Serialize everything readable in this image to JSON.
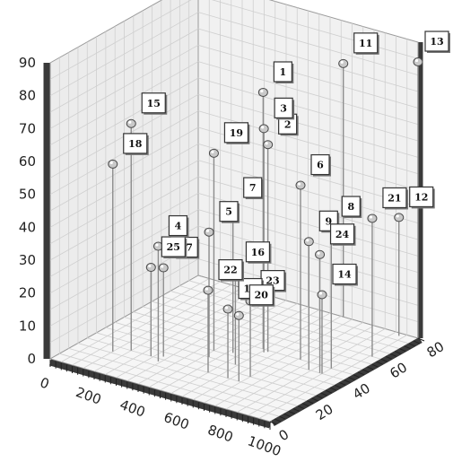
{
  "chart_data": {
    "type": "scatter",
    "title": "",
    "axes": {
      "x": {
        "min": 0,
        "max": 1000,
        "ticks": [
          "0",
          "200",
          "400",
          "600",
          "800",
          "1000"
        ]
      },
      "y": {
        "min": 0,
        "max": 80,
        "ticks": [
          "0",
          "20",
          "40",
          "60",
          "80"
        ]
      },
      "z": {
        "min": 0,
        "max": 90,
        "ticks": [
          "0",
          "10",
          "20",
          "30",
          "40",
          "50",
          "60",
          "70",
          "80",
          "90"
        ]
      }
    },
    "grid": true,
    "points": [
      {
        "label": "1",
        "x": 590,
        "y": 45,
        "z": 78
      },
      {
        "label": "2",
        "x": 620,
        "y": 44,
        "z": 63
      },
      {
        "label": "3",
        "x": 610,
        "y": 43,
        "z": 68
      },
      {
        "label": "4",
        "x": 340,
        "y": 18,
        "z": 35
      },
      {
        "label": "5",
        "x": 470,
        "y": 30,
        "z": 38
      },
      {
        "label": "6",
        "x": 760,
        "y": 45,
        "z": 53
      },
      {
        "label": "7",
        "x": 520,
        "y": 37,
        "z": 44
      },
      {
        "label": "8",
        "x": 900,
        "y": 45,
        "z": 43
      },
      {
        "label": "9",
        "x": 840,
        "y": 40,
        "z": 39
      },
      {
        "label": "10",
        "x": 640,
        "y": 20,
        "z": 21
      },
      {
        "label": "11",
        "x": 660,
        "y": 80,
        "z": 77
      },
      {
        "label": "12",
        "x": 930,
        "y": 78,
        "z": 36
      },
      {
        "label": "13",
        "x": 1000,
        "y": 80,
        "z": 84
      },
      {
        "label": "14",
        "x": 900,
        "y": 40,
        "z": 24
      },
      {
        "label": "15",
        "x": 200,
        "y": 20,
        "z": 69
      },
      {
        "label": "16",
        "x": 590,
        "y": 30,
        "z": 28
      },
      {
        "label": "17",
        "x": 330,
        "y": 22,
        "z": 27
      },
      {
        "label": "18",
        "x": 150,
        "y": 16,
        "z": 57
      },
      {
        "label": "19",
        "x": 450,
        "y": 35,
        "z": 60
      },
      {
        "label": "20",
        "x": 690,
        "y": 20,
        "z": 20
      },
      {
        "label": "21",
        "x": 960,
        "y": 60,
        "z": 42
      },
      {
        "label": "22",
        "x": 550,
        "y": 20,
        "z": 25
      },
      {
        "label": "23",
        "x": 700,
        "y": 25,
        "z": 23
      },
      {
        "label": "24",
        "x": 890,
        "y": 40,
        "z": 36
      },
      {
        "label": "25",
        "x": 290,
        "y": 20,
        "z": 27
      }
    ]
  }
}
